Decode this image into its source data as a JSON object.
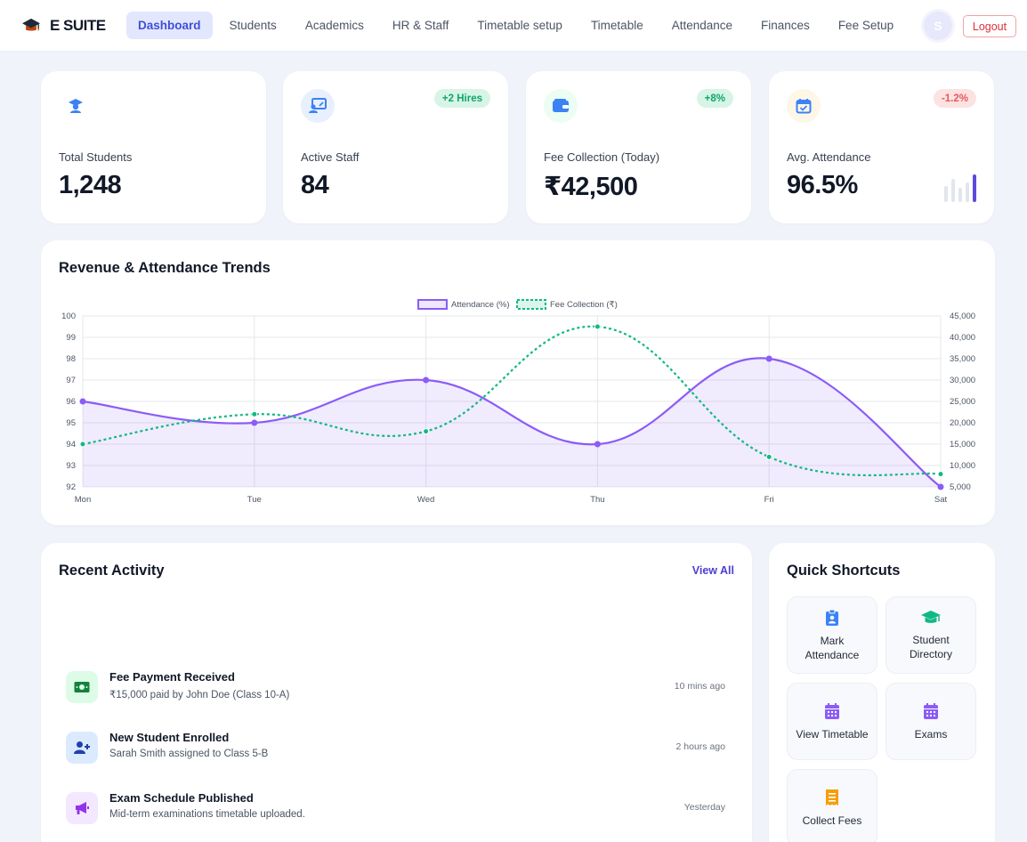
{
  "brand": {
    "name": "E SUITE",
    "logo_icon": "graduation-cap-icon"
  },
  "nav": {
    "items": [
      {
        "id": "dashboard",
        "label": "Dashboard",
        "active": true
      },
      {
        "id": "students",
        "label": "Students"
      },
      {
        "id": "academics",
        "label": "Academics"
      },
      {
        "id": "hr",
        "label": "HR & Staff"
      },
      {
        "id": "timetable-setup",
        "label": "Timetable setup"
      },
      {
        "id": "timetable",
        "label": "Timetable"
      },
      {
        "id": "attendance",
        "label": "Attendance"
      },
      {
        "id": "finances",
        "label": "Finances"
      },
      {
        "id": "fee-setup",
        "label": "Fee Setup"
      }
    ],
    "avatar_initial": "S",
    "logout_label": "Logout"
  },
  "stats": [
    {
      "label": "Total Students",
      "value": "1,248",
      "badge": "",
      "icon": "graduate-icon",
      "color": "#3b82f6"
    },
    {
      "label": "Active Staff",
      "value": "84",
      "badge": "+2 Hires",
      "icon": "presentation-icon",
      "color": "#3b82f6"
    },
    {
      "label": "Fee Collection (Today)",
      "value": "₹42,500",
      "badge": "+8%",
      "icon": "wallet-icon",
      "color": "#3b82f6"
    },
    {
      "label": "Avg. Attendance",
      "value": "96.5%",
      "badge": "-1.2%",
      "icon": "calendar-check-icon",
      "color": "#3b82f6"
    }
  ],
  "chart_title": "Revenue & Attendance Trends",
  "chart_data": {
    "type": "line",
    "x": [
      "Mon",
      "Tue",
      "Wed",
      "Thu",
      "Fri",
      "Sat"
    ],
    "series": [
      {
        "name": "Attendance (%)",
        "values": [
          96,
          95,
          97,
          94,
          98,
          92
        ],
        "axis": "left",
        "color": "#8b5cf6",
        "fill": true,
        "style": "solid"
      },
      {
        "name": "Fee Collection (₹)",
        "values": [
          15000,
          22000,
          18000,
          42500,
          12000,
          8000
        ],
        "axis": "right",
        "color": "#10b981",
        "fill": false,
        "style": "dotted"
      }
    ],
    "y_left": {
      "min": 92,
      "max": 100,
      "ticks": [
        "92",
        "93",
        "94",
        "95",
        "96",
        "97",
        "98",
        "99",
        "100"
      ]
    },
    "y_right": {
      "min": 5000,
      "max": 45000,
      "ticks": [
        "5,000",
        "10,000",
        "15,000",
        "20,000",
        "25,000",
        "30,000",
        "35,000",
        "40,000",
        "45,000"
      ]
    },
    "legend_position": "top",
    "grid": true
  },
  "activity": {
    "title": "Recent Activity",
    "view_all": "View All",
    "items": [
      {
        "title": "Fee Payment Received",
        "subtitle": "₹15,000 paid by John Doe (Class 10-A)",
        "time": "10 mins ago",
        "icon": "cash-icon"
      },
      {
        "title": "New Student Enrolled",
        "subtitle": "Sarah Smith assigned to Class 5-B",
        "time": "2 hours ago",
        "icon": "user-plus-icon"
      },
      {
        "title": "Exam Schedule Published",
        "subtitle": "Mid-term examinations timetable uploaded.",
        "time": "Yesterday",
        "icon": "megaphone-icon"
      }
    ]
  },
  "shortcuts": {
    "title": "Quick Shortcuts",
    "items": [
      {
        "label": "Mark Attendance",
        "icon": "clipboard-user-icon",
        "color": "#3b82f6"
      },
      {
        "label": "Student Directory",
        "icon": "graduation-cap-icon",
        "color": "#10b981"
      },
      {
        "label": "View Timetable",
        "icon": "calendar-icon",
        "color": "#8b5cf6"
      },
      {
        "label": "Exams",
        "icon": "calendar-icon",
        "color": "#8b5cf6"
      },
      {
        "label": "Collect Fees",
        "icon": "receipt-icon",
        "color": "#f59e0b"
      }
    ]
  }
}
